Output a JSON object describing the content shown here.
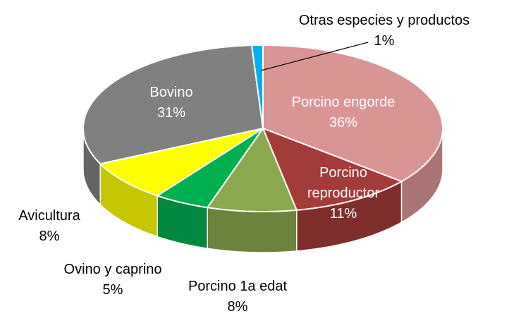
{
  "chart_data": {
    "type": "pie",
    "categories": [
      "Porcino engorde",
      "Porcino reproductor",
      "Porcino 1a edat",
      "Ovino y caprino",
      "Avicultura",
      "Bovino",
      "Otras especies y productos"
    ],
    "values": [
      36,
      11,
      8,
      5,
      8,
      31,
      1
    ],
    "value_labels": [
      "36%",
      "11%",
      "8%",
      "5%",
      "8%",
      "31%",
      "1%"
    ],
    "colors": [
      "#d99594",
      "#a33b39",
      "#8aa84e",
      "#00b050",
      "#ffff00",
      "#808080",
      "#00b0f0"
    ]
  }
}
